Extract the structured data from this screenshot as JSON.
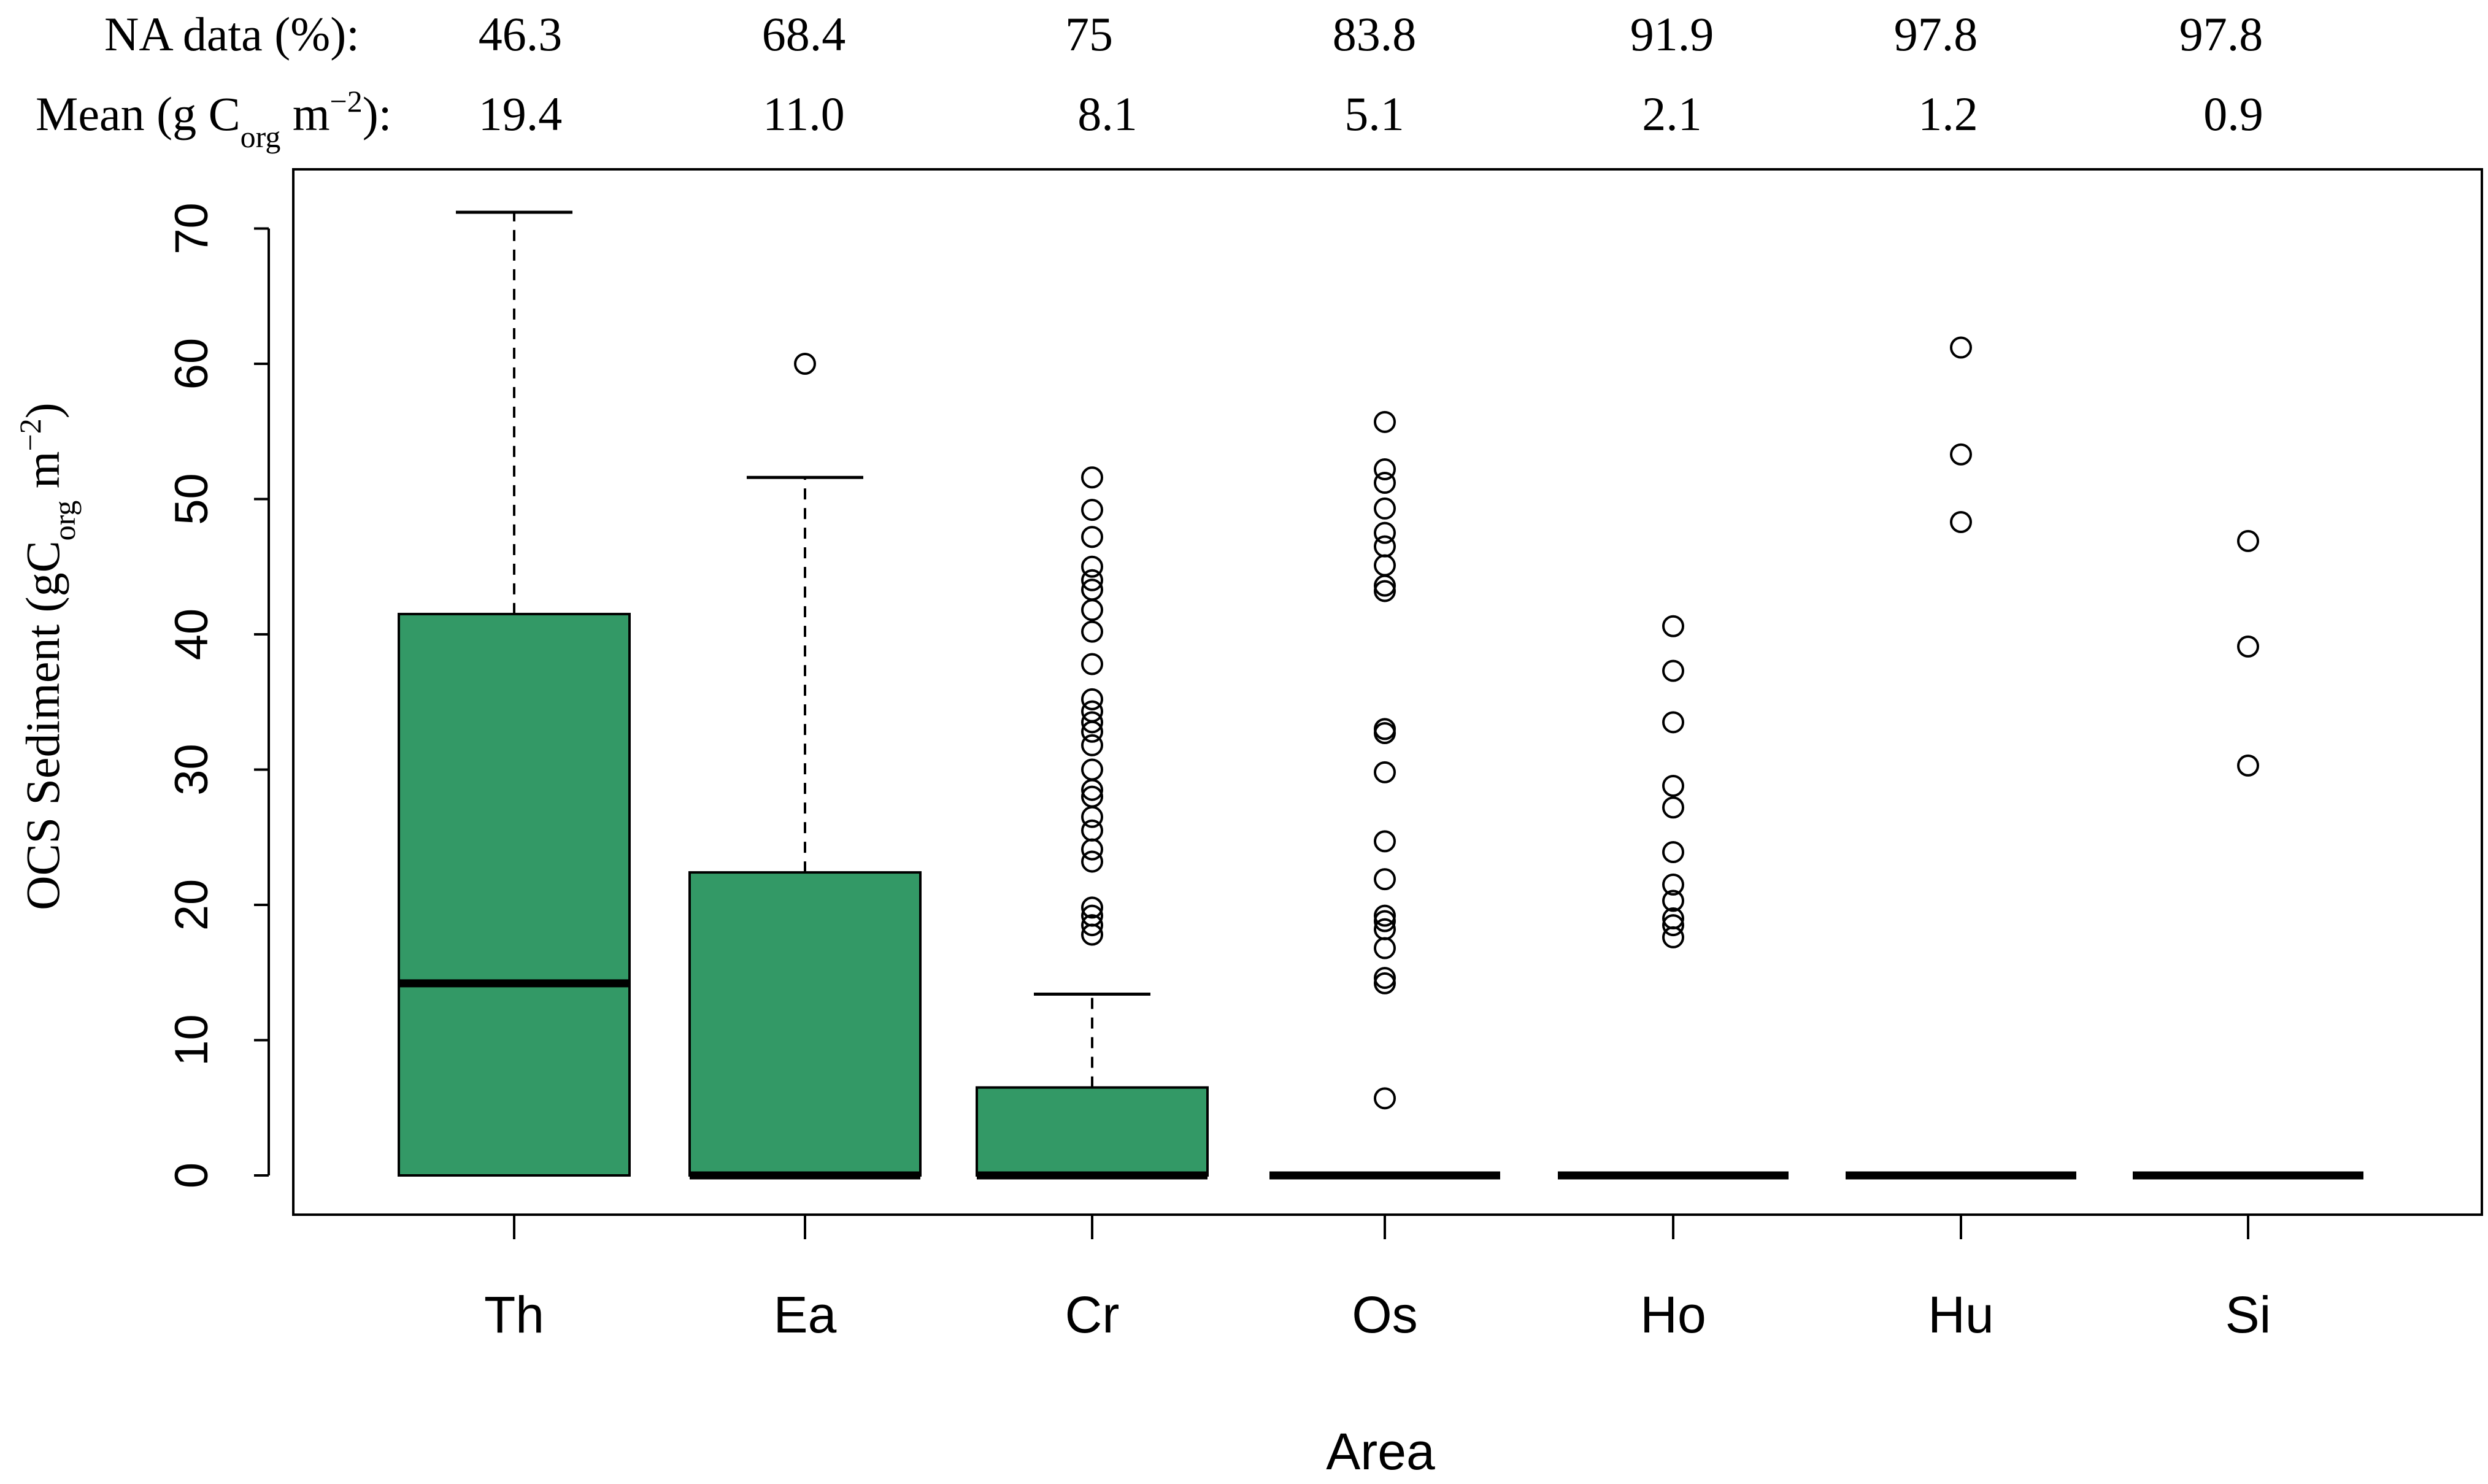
{
  "chart_data": {
    "type": "boxplot",
    "title": "",
    "xlabel": "Area",
    "ylabel": {
      "prefix": "OCS Sediment (g",
      "c": "C",
      "c_sub": "org",
      "unit": " m",
      "exp": "−2",
      "suffix": ")"
    },
    "ylim": [
      0,
      70
    ],
    "yticks": [
      0,
      10,
      20,
      30,
      40,
      50,
      60,
      70
    ],
    "categories": [
      "Th",
      "Ea",
      "Cr",
      "Os",
      "Ho",
      "Hu",
      "Si"
    ],
    "box_color": "#339966",
    "header_rows": {
      "na_label": "NA data (%):",
      "na_values": [
        "46.3",
        "68.4",
        "75",
        "83.8",
        "91.9",
        "97.8",
        "97.8"
      ],
      "mean_label": {
        "prefix": "Mean (g ",
        "c": "C",
        "c_sub": "org",
        "unit": " m",
        "exp": "−2",
        "suffix": "):"
      },
      "mean_values": [
        "19.4",
        "11.0",
        "8.1",
        "5.1",
        "2.1",
        "1.2",
        "0.9"
      ]
    },
    "boxes": [
      {
        "name": "Th",
        "whisker_low": 0,
        "q1": 0,
        "median": 14.2,
        "q3": 41.5,
        "whisker_high": 71.2,
        "outliers": []
      },
      {
        "name": "Ea",
        "whisker_low": 0,
        "q1": 0,
        "median": 0,
        "q3": 22.4,
        "whisker_high": 51.6,
        "outliers": [
          60.0
        ]
      },
      {
        "name": "Cr",
        "whisker_low": 0,
        "q1": 0,
        "median": 0,
        "q3": 6.5,
        "whisker_high": 13.4,
        "outliers": [
          17.8,
          18.5,
          19.2,
          19.8,
          23.2,
          24.1,
          25.5,
          26.5,
          28.0,
          28.5,
          30.0,
          31.8,
          32.8,
          33.5,
          34.3,
          35.2,
          37.8,
          40.2,
          41.8,
          43.3,
          44.0,
          45.0,
          47.2,
          49.2,
          51.6
        ]
      },
      {
        "name": "Os",
        "whisker_low": 0,
        "q1": 0,
        "median": 0,
        "q3": 0,
        "whisker_high": 0,
        "outliers": [
          5.7,
          14.2,
          14.6,
          16.8,
          18.2,
          18.8,
          19.2,
          21.9,
          24.7,
          29.8,
          32.7,
          33.0,
          43.2,
          43.6,
          45.1,
          46.5,
          47.5,
          49.3,
          51.2,
          52.2,
          55.7
        ]
      },
      {
        "name": "Ho",
        "whisker_low": 0,
        "q1": 0,
        "median": 0,
        "q3": 0,
        "whisker_high": 0,
        "outliers": [
          17.6,
          18.5,
          19.0,
          20.3,
          21.5,
          23.9,
          27.2,
          28.8,
          33.5,
          37.3,
          40.6
        ]
      },
      {
        "name": "Hu",
        "whisker_low": 0,
        "q1": 0,
        "median": 0,
        "q3": 0,
        "whisker_high": 0,
        "outliers": [
          48.3,
          53.3,
          61.2
        ]
      },
      {
        "name": "Si",
        "whisker_low": 0,
        "q1": 0,
        "median": 0,
        "q3": 0,
        "whisker_high": 0,
        "outliers": [
          30.3,
          39.1,
          46.9
        ]
      }
    ]
  }
}
